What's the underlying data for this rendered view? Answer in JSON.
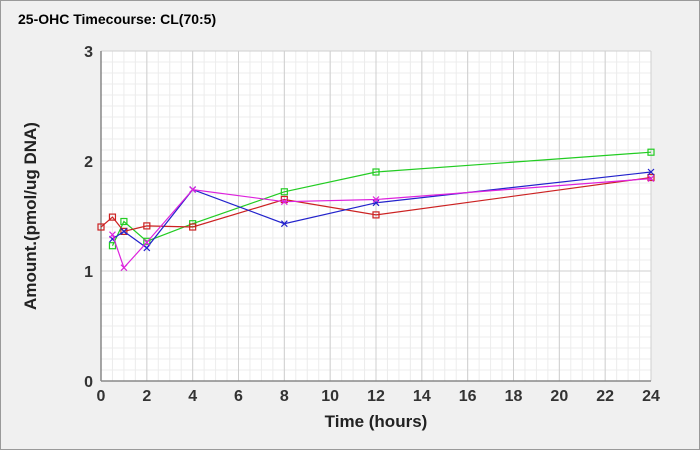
{
  "chart_data": {
    "type": "line",
    "title": "25-OHC Timecourse: CL(70:5)",
    "xlabel": "Time (hours)",
    "ylabel": "Amount.(pmol/ug DNA)",
    "xlim": [
      0,
      24
    ],
    "ylim": [
      0,
      3
    ],
    "xticks": [
      0,
      2,
      4,
      6,
      8,
      10,
      12,
      14,
      16,
      18,
      20,
      22,
      24
    ],
    "yticks": [
      0,
      1,
      2,
      3
    ],
    "grid": true,
    "legend": "none",
    "series": [
      {
        "color": "#22cc22",
        "marker": "square",
        "x": [
          0.5,
          1,
          2,
          4,
          8,
          12,
          24
        ],
        "y": [
          1.23,
          1.45,
          1.27,
          1.43,
          1.72,
          1.9,
          2.08
        ]
      },
      {
        "color": "#cc2222",
        "marker": "square",
        "x": [
          0,
          0.5,
          1,
          2,
          4,
          8,
          12,
          24
        ],
        "y": [
          1.4,
          1.49,
          1.36,
          1.41,
          1.4,
          1.65,
          1.51,
          1.85
        ]
      },
      {
        "color": "#2222cc",
        "marker": "x",
        "x": [
          0.5,
          1,
          2,
          4,
          8,
          12,
          24
        ],
        "y": [
          1.29,
          1.36,
          1.21,
          1.74,
          1.43,
          1.62,
          1.9
        ]
      },
      {
        "color": "#dd22dd",
        "marker": "x",
        "x": [
          0.5,
          1,
          2,
          4,
          8,
          12,
          24
        ],
        "y": [
          1.33,
          1.03,
          1.26,
          1.74,
          1.63,
          1.65,
          1.84
        ]
      }
    ]
  }
}
